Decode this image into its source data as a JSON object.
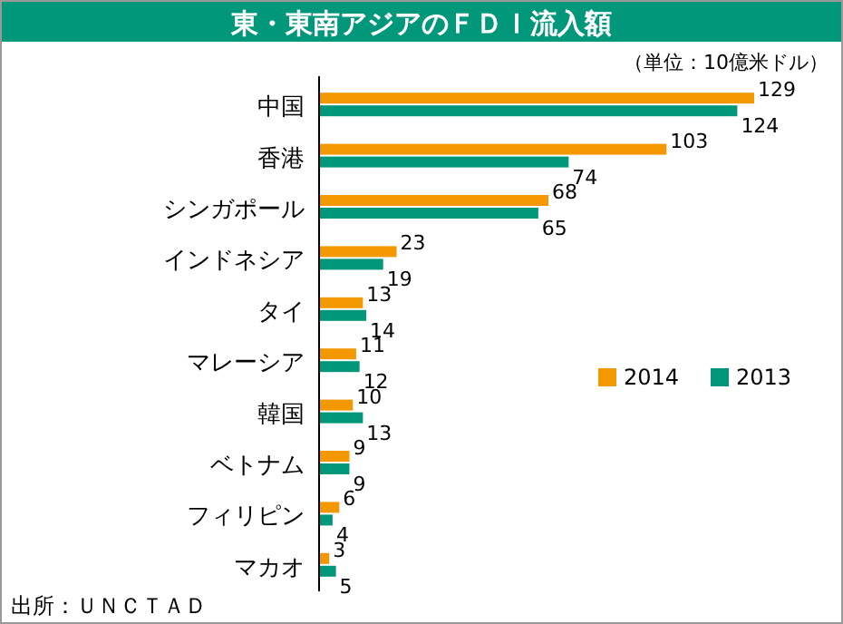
{
  "chart_data": {
    "type": "bar",
    "orientation": "horizontal",
    "title": "東・東南アジアのＦＤＩ流入額",
    "subtitle": "（単位：10億米ドル）",
    "categories": [
      "中国",
      "香港",
      "シンガポール",
      "インドネシア",
      "タイ",
      "マレーシア",
      "韓国",
      "ベトナム",
      "フィリピン",
      "マカオ"
    ],
    "series": [
      {
        "name": "2014",
        "color": "#f39800",
        "values": [
          129,
          103,
          68,
          23,
          13,
          11,
          10,
          9,
          6,
          3
        ]
      },
      {
        "name": "2013",
        "color": "#00977a",
        "values": [
          124,
          74,
          65,
          19,
          14,
          12,
          13,
          9,
          4,
          5
        ]
      }
    ],
    "data_labels": true,
    "legend": "right",
    "annotations": [
      "出所：ＵＮＣＴＡＤ"
    ]
  }
}
